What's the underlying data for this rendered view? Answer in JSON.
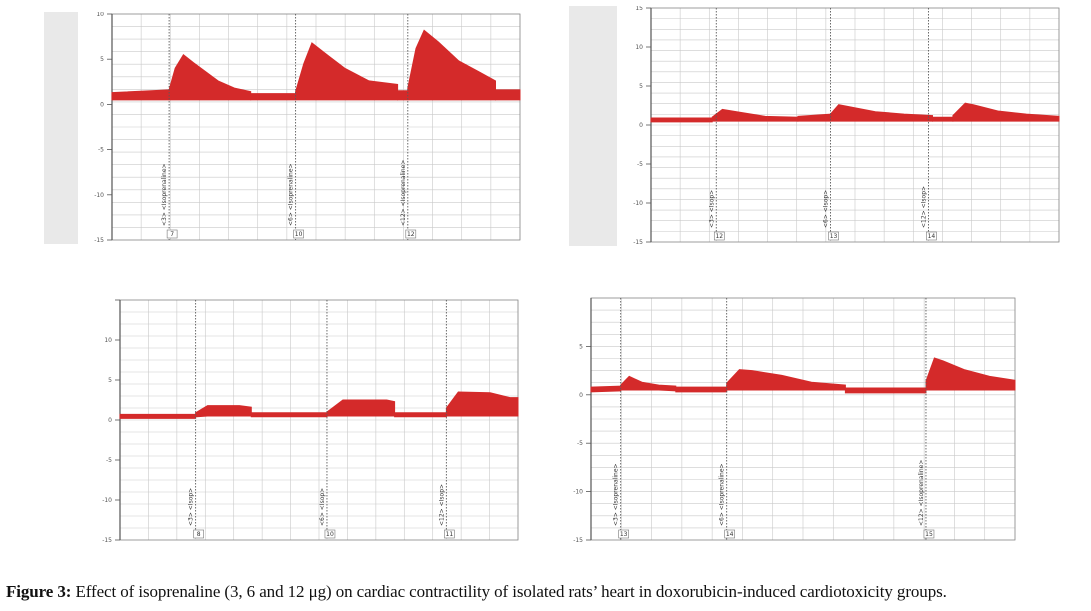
{
  "colors": {
    "trace": "#d42a2a",
    "grid": "#c9c9c9",
    "marker": "#5a5a5a",
    "axis": "#8a8a8a"
  },
  "caption": {
    "label": "Figure 3:",
    "text": "Effect of isoprenaline (3, 6 and 12 μg) on cardiac contractility of isolated rats’ heart in doxorubicin-induced cardiotoxicity groups."
  },
  "chart_data": [
    {
      "type": "line",
      "ylim": [
        -15,
        10
      ],
      "yticks": [
        10,
        5,
        0,
        -5,
        -10,
        -15
      ],
      "ytick_labels": [
        "10",
        "5",
        "0",
        "-5",
        "-10",
        "-15"
      ],
      "markers": [
        {
          "label": "<3> <Isoprenaline>",
          "index": "7"
        },
        {
          "label": "<6> <Isoprenaline>",
          "index": "10"
        },
        {
          "label": "<12> <Isoprenaline>",
          "index": "12"
        }
      ],
      "segments": [
        {
          "x": [
            0,
            0.14
          ],
          "y": [
            1.3,
            1.6
          ]
        },
        {
          "x": [
            0.14,
            0.155,
            0.175,
            0.2,
            0.26,
            0.3,
            0.34
          ],
          "y": [
            1.6,
            4.0,
            5.5,
            4.6,
            2.6,
            1.8,
            1.4
          ]
        },
        {
          "x": [
            0.34,
            0.45
          ],
          "y": [
            1.2,
            1.2
          ]
        },
        {
          "x": [
            0.45,
            0.47,
            0.49,
            0.53,
            0.57,
            0.63,
            0.7
          ],
          "y": [
            1.4,
            4.5,
            6.8,
            5.4,
            4.0,
            2.6,
            2.2
          ]
        },
        {
          "x": [
            0.7,
            0.725
          ],
          "y": [
            1.5,
            1.5
          ]
        },
        {
          "x": [
            0.725,
            0.745,
            0.765,
            0.8,
            0.85,
            0.9,
            0.94
          ],
          "y": [
            1.8,
            6.2,
            8.2,
            6.9,
            4.8,
            3.6,
            2.6
          ]
        },
        {
          "x": [
            0.94,
            1.0
          ],
          "y": [
            1.6,
            1.6
          ]
        }
      ]
    },
    {
      "type": "line",
      "ylim": [
        -15,
        15
      ],
      "yticks": [
        15,
        10,
        5,
        0,
        -5,
        -10,
        -15
      ],
      "ytick_labels": [
        "15",
        "10",
        "5",
        "0",
        "-5",
        "-10",
        "-15"
      ],
      "markers": [
        {
          "label": "<3> <Isop>",
          "index": "12"
        },
        {
          "label": "<6> <Isop>",
          "index": "13"
        },
        {
          "label": "<12> <Isop>",
          "index": "14"
        }
      ],
      "segments": [
        {
          "x": [
            0,
            0.15
          ],
          "y": [
            0.9,
            0.9
          ]
        },
        {
          "x": [
            0.15,
            0.175,
            0.21,
            0.28,
            0.36
          ],
          "y": [
            1.0,
            2.0,
            1.7,
            1.1,
            1.0
          ]
        },
        {
          "x": [
            0.36,
            0.44
          ],
          "y": [
            1.1,
            1.4
          ]
        },
        {
          "x": [
            0.44,
            0.46,
            0.48,
            0.55,
            0.62,
            0.69
          ],
          "y": [
            1.4,
            2.6,
            2.4,
            1.7,
            1.4,
            1.2
          ]
        },
        {
          "x": [
            0.69,
            0.74
          ],
          "y": [
            1.0,
            1.0
          ]
        },
        {
          "x": [
            0.74,
            0.77,
            0.79,
            0.85,
            0.92,
            1.0
          ],
          "y": [
            1.2,
            2.8,
            2.6,
            1.8,
            1.4,
            1.1
          ]
        }
      ]
    },
    {
      "type": "line",
      "ylim": [
        -15,
        15
      ],
      "yticks": [
        15,
        10,
        5,
        0,
        -5,
        -10,
        -15
      ],
      "ytick_labels": [
        "",
        "10",
        "5",
        "0",
        "-5",
        "-10",
        "-15"
      ],
      "markers": [
        {
          "label": "<3> <Isop>",
          "index": "8"
        },
        {
          "label": "<6> <Isop>",
          "index": "10"
        },
        {
          "label": "<12> <Isop>",
          "index": "11"
        }
      ],
      "segments": [
        {
          "x": [
            0,
            0.19
          ],
          "y": [
            0.7,
            0.7
          ]
        },
        {
          "x": [
            0.19,
            0.22,
            0.3,
            0.33
          ],
          "y": [
            0.9,
            1.8,
            1.8,
            1.6
          ]
        },
        {
          "x": [
            0.33,
            0.52
          ],
          "y": [
            0.9,
            0.9
          ]
        },
        {
          "x": [
            0.52,
            0.56,
            0.67,
            0.69
          ],
          "y": [
            1.0,
            2.5,
            2.5,
            2.3
          ]
        },
        {
          "x": [
            0.69,
            0.82
          ],
          "y": [
            0.9,
            0.9
          ]
        },
        {
          "x": [
            0.82,
            0.85,
            0.93,
            0.98,
            1.0
          ],
          "y": [
            1.5,
            3.5,
            3.4,
            2.8,
            2.8
          ]
        }
      ]
    },
    {
      "type": "line",
      "ylim": [
        -15,
        10
      ],
      "yticks": [
        5,
        0,
        -5,
        -10,
        -15
      ],
      "ytick_labels": [
        "5",
        "0",
        "-5",
        "-10",
        "-15"
      ],
      "markers": [
        {
          "label": "<3> <Isoprenaline>",
          "index": "13"
        },
        {
          "label": "<6> <Isoprenaline>",
          "index": "14"
        },
        {
          "label": "<12> <Isoprenaline>",
          "index": "15"
        }
      ],
      "segments": [
        {
          "x": [
            0,
            0.07
          ],
          "y": [
            0.8,
            0.9
          ]
        },
        {
          "x": [
            0.07,
            0.09,
            0.12,
            0.16,
            0.2
          ],
          "y": [
            1.0,
            1.9,
            1.3,
            1.0,
            0.9
          ]
        },
        {
          "x": [
            0.2,
            0.32
          ],
          "y": [
            0.8,
            0.8
          ]
        },
        {
          "x": [
            0.32,
            0.35,
            0.38,
            0.45,
            0.52,
            0.6
          ],
          "y": [
            1.2,
            2.6,
            2.5,
            2.0,
            1.3,
            1.0
          ]
        },
        {
          "x": [
            0.6,
            0.79
          ],
          "y": [
            0.7,
            0.7
          ]
        },
        {
          "x": [
            0.79,
            0.81,
            0.83,
            0.88,
            0.94,
            1.0
          ],
          "y": [
            1.4,
            3.8,
            3.5,
            2.6,
            1.9,
            1.5
          ]
        }
      ]
    }
  ]
}
